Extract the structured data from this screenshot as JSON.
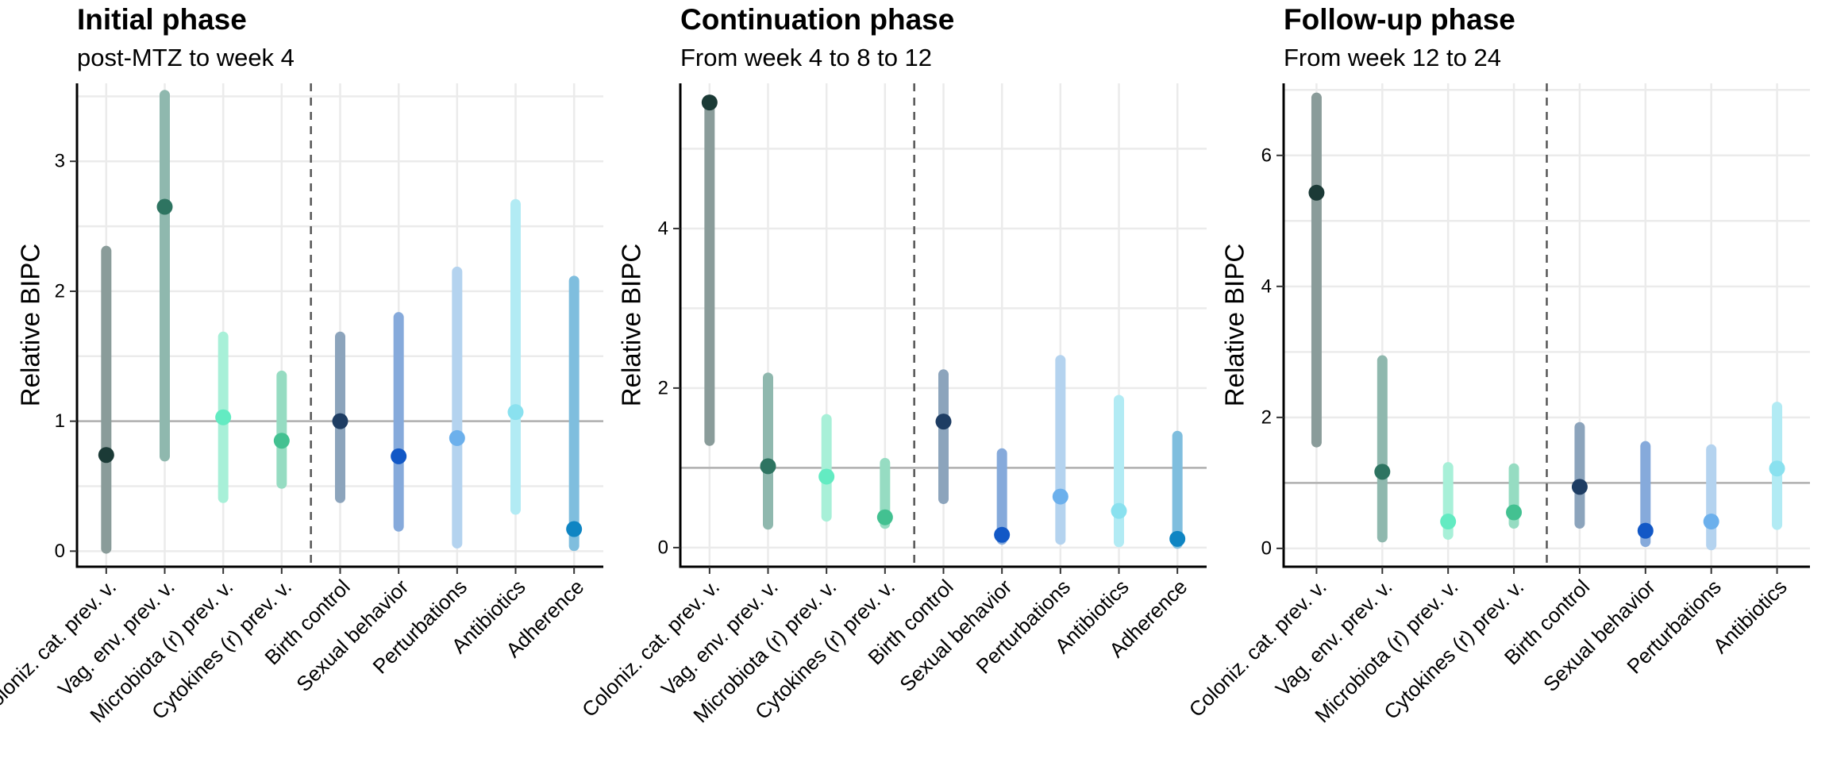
{
  "chart_data": [
    {
      "type": "pointrange",
      "title": "Initial phase",
      "subtitle": "post-MTZ to week 4",
      "ylabel": "Relative BIPC",
      "ylim": [
        -0.12,
        3.6
      ],
      "yticks": [
        0,
        1,
        2,
        3
      ],
      "reference_line": 1,
      "separator_after_index": 3,
      "categories": [
        "Coloniz. cat. prev. v.",
        "Vag. env. prev. v.",
        "Microbiota (r) prev. v.",
        "Cytokines (r) prev. v.",
        "Birth control",
        "Sexual behavior",
        "Perturbations",
        "Antibiotics",
        "Adherence"
      ],
      "values": [
        0.74,
        2.65,
        1.03,
        0.85,
        1.0,
        0.73,
        0.87,
        1.07,
        0.17
      ],
      "lower": [
        0.02,
        0.73,
        0.41,
        0.52,
        0.41,
        0.19,
        0.06,
        0.32,
        0.04
      ],
      "upper": [
        2.31,
        3.51,
        1.65,
        1.35,
        1.65,
        1.8,
        2.15,
        2.67,
        2.08
      ]
    },
    {
      "type": "pointrange",
      "title": "Continuation phase",
      "subtitle": "From week 4 to 8 to 12",
      "ylabel": "Relative BIPC",
      "ylim": [
        -0.24,
        5.82
      ],
      "yticks": [
        0,
        2,
        4
      ],
      "reference_line": 1,
      "separator_after_index": 3,
      "categories": [
        "Coloniz. cat. prev. v.",
        "Vag. env. prev. v.",
        "Microbiota (r) prev. v.",
        "Cytokines (r) prev. v.",
        "Birth control",
        "Sexual behavior",
        "Perturbations",
        "Antibiotics",
        "Adherence"
      ],
      "values": [
        5.58,
        1.02,
        0.89,
        0.38,
        1.58,
        0.16,
        0.64,
        0.46,
        0.11
      ],
      "lower": [
        1.34,
        0.29,
        0.39,
        0.3,
        0.61,
        0.1,
        0.1,
        0.07,
        0.05
      ],
      "upper": [
        5.58,
        2.13,
        1.61,
        1.06,
        2.17,
        1.18,
        2.35,
        1.85,
        1.4
      ]
    },
    {
      "type": "pointrange",
      "title": "Follow-up phase",
      "subtitle": "From week 12 to 24",
      "ylabel": "Relative BIPC",
      "ylim": [
        -0.28,
        7.1
      ],
      "yticks": [
        0,
        2,
        4,
        6
      ],
      "reference_line": 1,
      "separator_after_index": 3,
      "categories": [
        "Coloniz. cat. prev. v.",
        "Vag. env. prev. v.",
        "Microbiota (r) prev. v.",
        "Cytokines (r) prev. v.",
        "Birth control",
        "Sexual behavior",
        "Perturbations",
        "Antibiotics"
      ],
      "values": [
        5.43,
        1.17,
        0.41,
        0.55,
        0.94,
        0.27,
        0.41,
        1.22
      ],
      "lower": [
        1.62,
        0.17,
        0.21,
        0.38,
        0.38,
        0.1,
        0.05,
        0.36
      ],
      "upper": [
        6.88,
        2.87,
        1.24,
        1.22,
        1.85,
        1.56,
        1.51,
        2.16
      ]
    }
  ],
  "colors": {
    "lines": [
      "#8a9c9a",
      "#8fb8ae",
      "#a8f0d8",
      "#96dcc2",
      "#8ca4bc",
      "#86aadb",
      "#b4d3ef",
      "#b2ebf4",
      "#7fbede"
    ],
    "points": [
      "#1b3a36",
      "#2e7461",
      "#63ebc2",
      "#43c191",
      "#1e3d63",
      "#1258c6",
      "#6cb0ec",
      "#8ae1ef",
      "#0f85c3"
    ]
  }
}
